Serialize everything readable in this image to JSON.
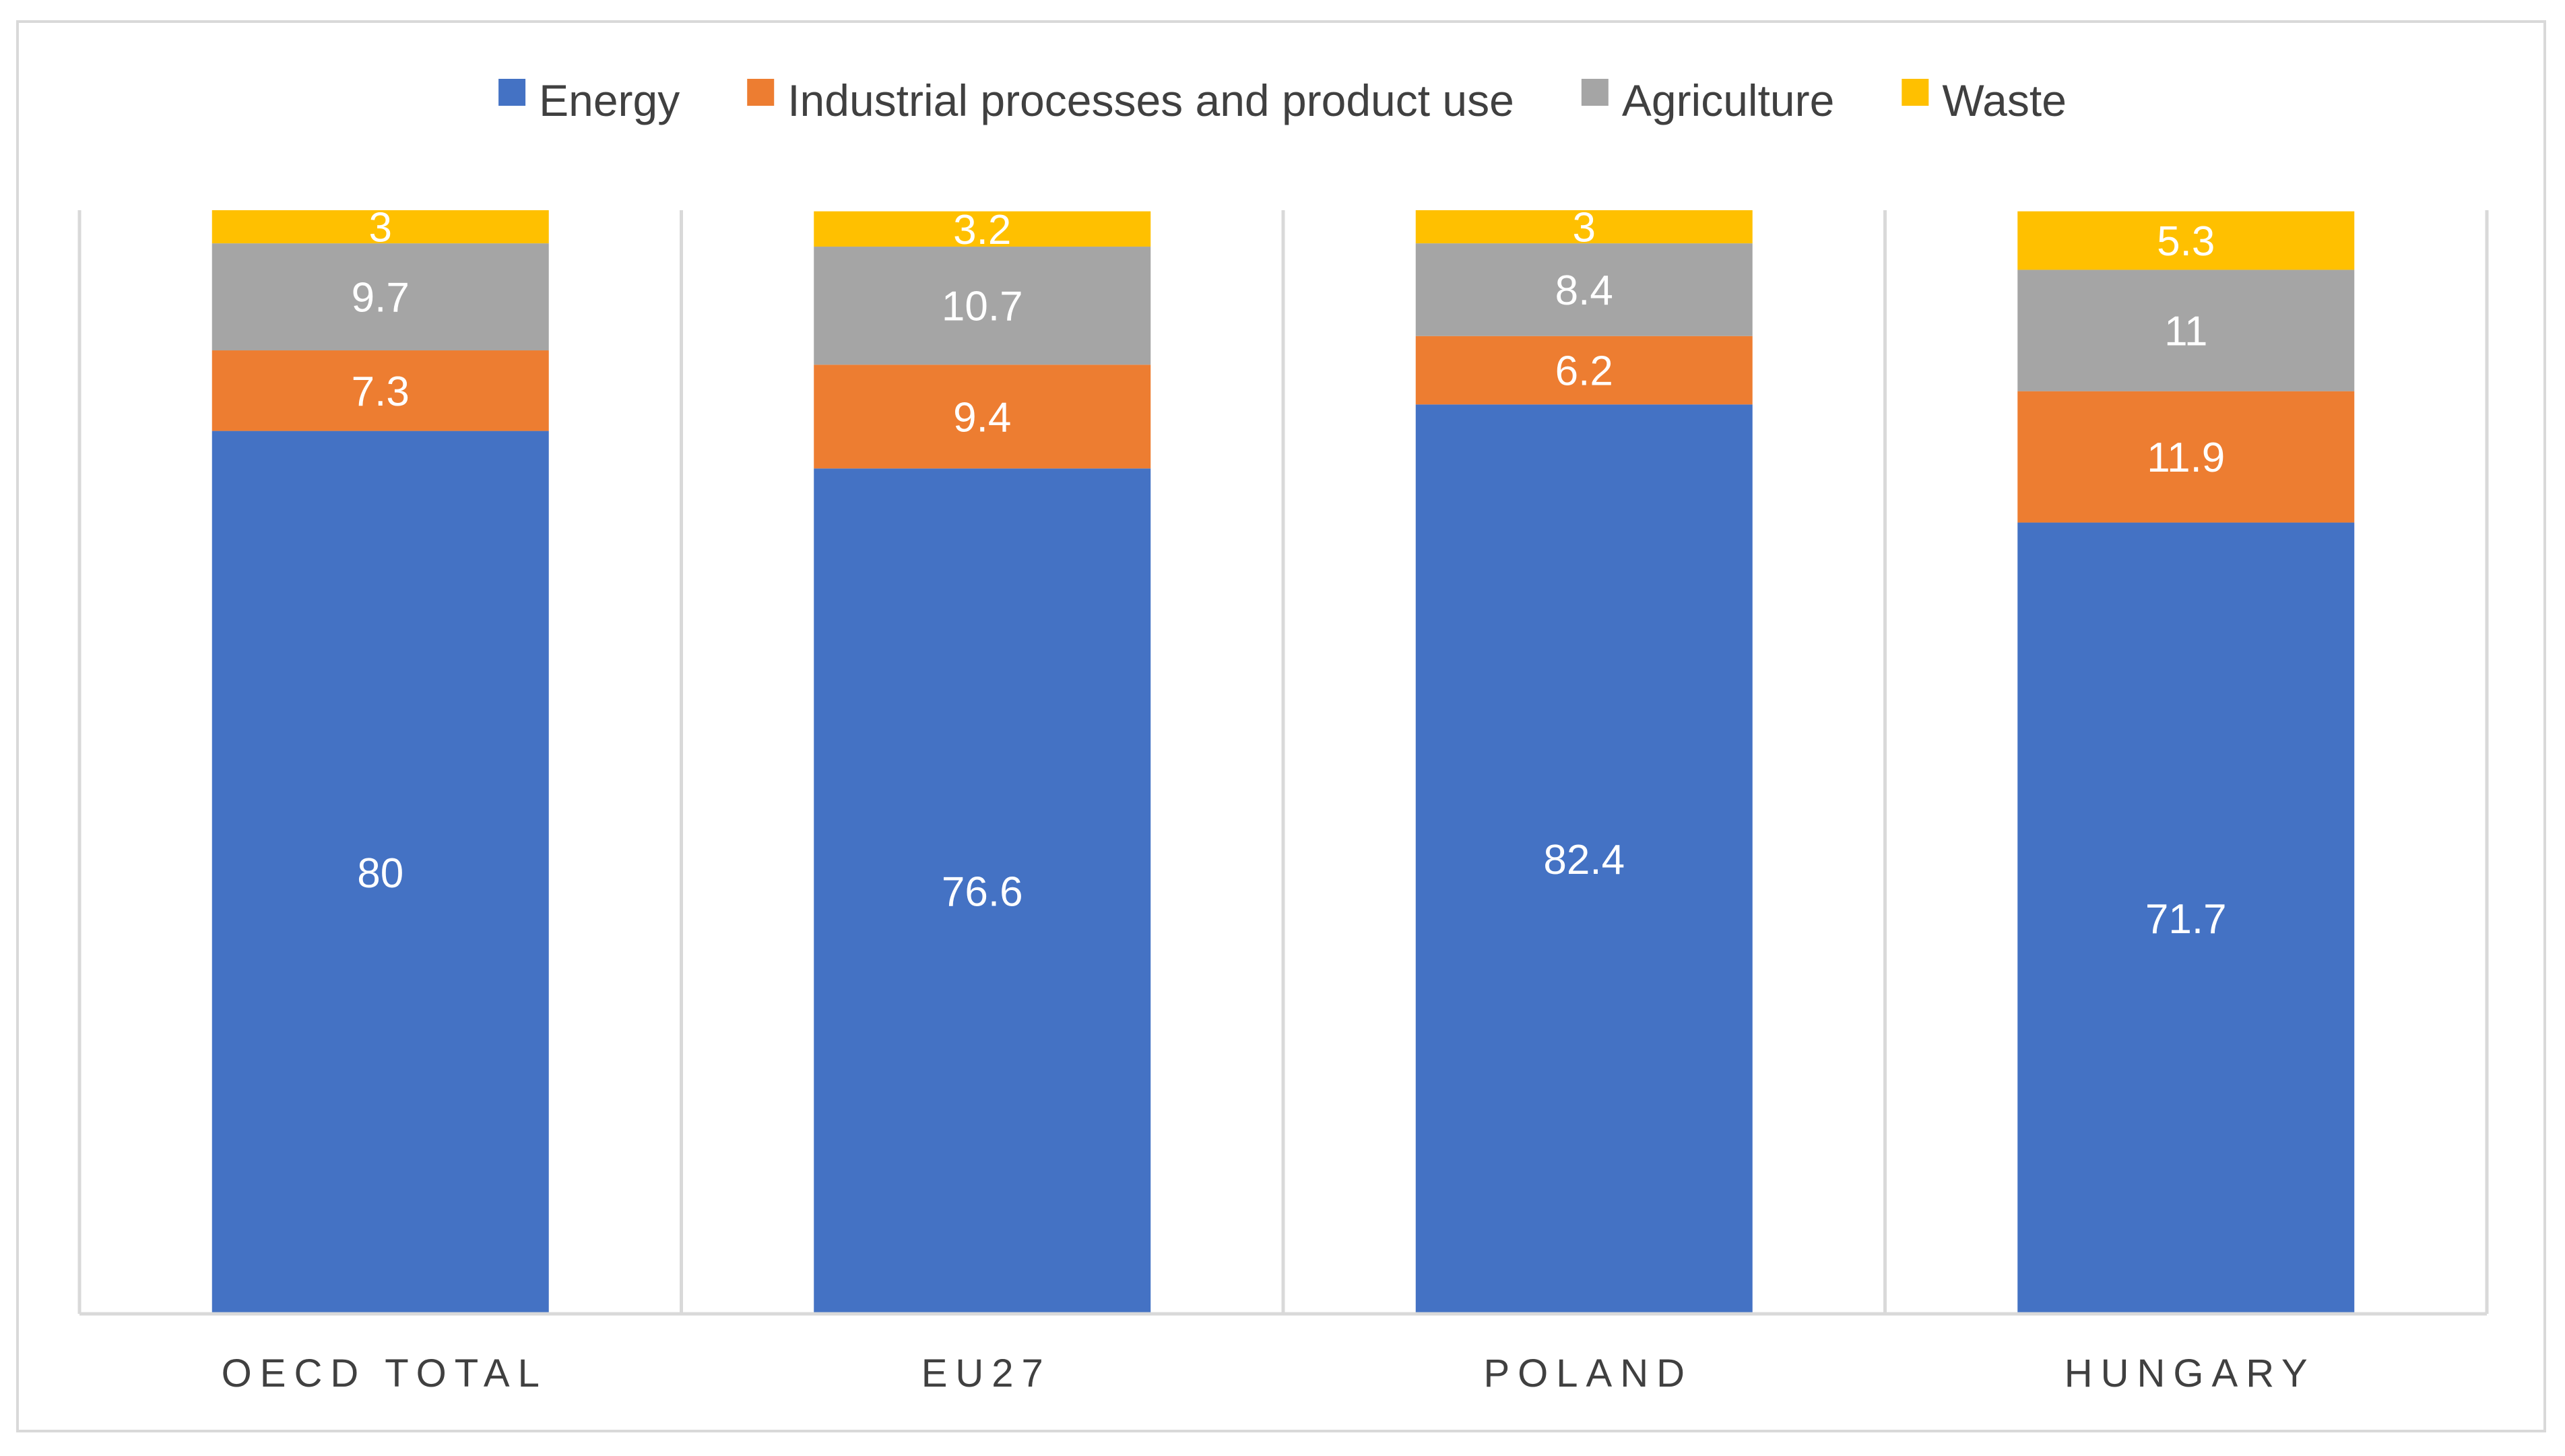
{
  "chart_data": {
    "type": "bar",
    "stacked": true,
    "categories": [
      "OECD TOTAL",
      "EU27",
      "POLAND",
      "HUNGARY"
    ],
    "series": [
      {
        "name": "Energy",
        "color": "#4472C4",
        "values": [
          80,
          76.6,
          82.4,
          71.7
        ],
        "labels": [
          "80",
          "76.6",
          "82.4",
          "71.7"
        ]
      },
      {
        "name": "Industrial processes and product use",
        "color": "#ED7D31",
        "values": [
          7.3,
          9.4,
          6.2,
          11.9
        ],
        "labels": [
          "7.3",
          "9.4",
          "6.2",
          "11.9"
        ]
      },
      {
        "name": "Agriculture",
        "color": "#A5A5A5",
        "values": [
          9.7,
          10.7,
          8.4,
          11
        ],
        "labels": [
          "9.7",
          "10.7",
          "8.4",
          "11"
        ]
      },
      {
        "name": "Waste",
        "color": "#FFC000",
        "values": [
          3,
          3.2,
          3,
          5.3
        ],
        "labels": [
          "3",
          "3.2",
          "3",
          "5.3"
        ]
      }
    ],
    "ylim": [
      0,
      100
    ],
    "legend_position": "top",
    "grid": "vertical separators between categories",
    "data_labels": true
  }
}
